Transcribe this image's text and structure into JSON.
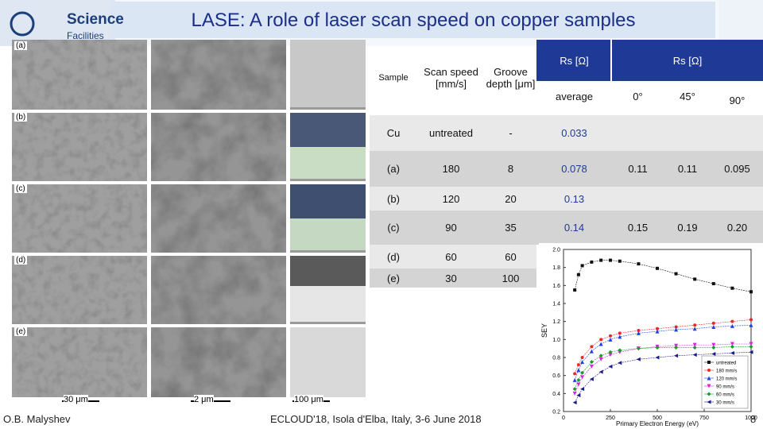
{
  "header": {
    "title": "LASE: A role of laser scan speed on copper samples",
    "logo_line1": "Science",
    "logo_line2": "Facilities"
  },
  "images": {
    "panel_labels": [
      "(a)",
      "(b)",
      "(c)",
      "(d)",
      "(e)"
    ],
    "scale_bars": [
      "30 μm",
      "2 μm",
      "100 μm"
    ]
  },
  "table": {
    "header": [
      "Sample",
      "Scan speed [mm/s]",
      "Groove depth [μm]"
    ],
    "rs_header": [
      "Rs [Ω]",
      "Rs [Ω]"
    ],
    "sub_header": [
      "average",
      "0°",
      "45°",
      "90°"
    ],
    "rows": [
      [
        "Cu",
        "untreated",
        "-",
        "0.033",
        null,
        null,
        null
      ],
      [
        "(a)",
        "180",
        "8",
        "0.078",
        "0.11",
        "0.11",
        "0.095"
      ],
      [
        "(b)",
        "120",
        "20",
        "0.13",
        null,
        null,
        null
      ],
      [
        "(c)",
        "90",
        "35",
        "0.14",
        "0.15",
        "0.19",
        "0.20"
      ],
      [
        "(d)",
        "60",
        "60",
        null,
        null,
        null,
        null
      ],
      [
        "(e)",
        "30",
        "100",
        null,
        null,
        null,
        null
      ]
    ]
  },
  "chart_data": {
    "type": "line",
    "x_label": "Primary Electron Energy (eV)",
    "y_label": "SEY",
    "x": [
      60,
      80,
      100,
      150,
      200,
      250,
      300,
      400,
      500,
      600,
      700,
      800,
      900,
      1000
    ],
    "series": [
      {
        "name": "untreated",
        "color": "#111111",
        "marker": "square",
        "values": [
          1.55,
          1.72,
          1.82,
          1.86,
          1.88,
          1.88,
          1.87,
          1.84,
          1.79,
          1.73,
          1.67,
          1.62,
          1.57,
          1.53
        ]
      },
      {
        "name": "180 mm/s",
        "color": "#e8282b",
        "marker": "circle",
        "values": [
          0.62,
          0.72,
          0.8,
          0.92,
          1.0,
          1.04,
          1.07,
          1.1,
          1.12,
          1.14,
          1.16,
          1.18,
          1.2,
          1.22
        ]
      },
      {
        "name": "120 mm/s",
        "color": "#2040e0",
        "marker": "triangle-up",
        "values": [
          0.55,
          0.66,
          0.75,
          0.87,
          0.95,
          1.0,
          1.03,
          1.07,
          1.09,
          1.11,
          1.12,
          1.14,
          1.15,
          1.16
        ]
      },
      {
        "name": "90 mm/s",
        "color": "#e020e0",
        "marker": "triangle-down",
        "values": [
          0.4,
          0.5,
          0.58,
          0.7,
          0.78,
          0.83,
          0.86,
          0.9,
          0.92,
          0.93,
          0.94,
          0.94,
          0.95,
          0.95
        ]
      },
      {
        "name": "60 mm/s",
        "color": "#1a9a2a",
        "marker": "diamond",
        "values": [
          0.45,
          0.55,
          0.63,
          0.75,
          0.82,
          0.86,
          0.88,
          0.9,
          0.91,
          0.91,
          0.91,
          0.91,
          0.92,
          0.92
        ]
      },
      {
        "name": "30 mm/s",
        "color": "#1a1a8a",
        "marker": "triangle-left",
        "values": [
          0.3,
          0.38,
          0.45,
          0.56,
          0.64,
          0.7,
          0.74,
          0.78,
          0.8,
          0.82,
          0.83,
          0.84,
          0.85,
          0.86
        ]
      }
    ],
    "xlim": [
      0,
      1000
    ],
    "ylim": [
      0.2,
      2.0
    ],
    "xticks": [
      0,
      250,
      500,
      750,
      1000
    ],
    "yticks": [
      0.2,
      0.4,
      0.6,
      0.8,
      {
        "value": 1,
        "label": "1.0"
      },
      1.2,
      1.4,
      1.6,
      1.8,
      {
        "value": 2,
        "label": "2.0"
      }
    ],
    "legend": "lower-right"
  },
  "footer": {
    "author": "O.B. Malyshev",
    "event": "ECLOUD'18, Isola d'Elba, Italy, 3-6 June 2018",
    "page": "8"
  }
}
